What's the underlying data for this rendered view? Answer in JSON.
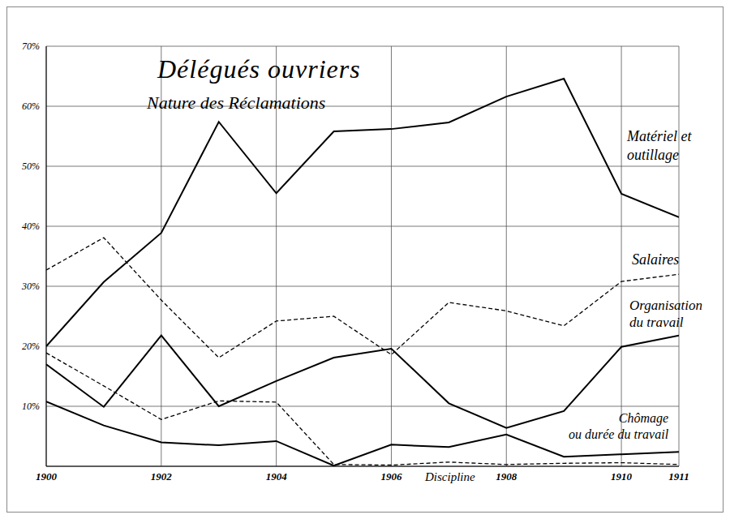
{
  "chart_data": {
    "type": "line",
    "title": "Délégués ouvriers",
    "subtitle": "Nature des Réclamations",
    "x": [
      1900,
      1901,
      1902,
      1903,
      1904,
      1905,
      1906,
      1907,
      1908,
      1909,
      1910,
      1911
    ],
    "xlim": [
      1900,
      1911
    ],
    "xticks": [
      1900,
      1902,
      1904,
      1906,
      1908,
      1910,
      1911
    ],
    "ylim": [
      0,
      70
    ],
    "yticks": [
      {
        "value": 10,
        "label": "10%"
      },
      {
        "value": 20,
        "label": "20%"
      },
      {
        "value": 30,
        "label": "30%"
      },
      {
        "value": 40,
        "label": "40%"
      },
      {
        "value": 50,
        "label": "50%"
      },
      {
        "value": 60,
        "label": "60%"
      },
      {
        "value": 70,
        "label": "70%"
      }
    ],
    "grid": true,
    "series": [
      {
        "name": "Matériel et outillage",
        "color": "#000000",
        "line_style": "solid",
        "values": [
          20,
          30.7,
          38.9,
          57.4,
          45.5,
          55.8,
          56.2,
          57.3,
          61.6,
          64.6,
          45.4,
          41.5
        ]
      },
      {
        "name": "Salaires",
        "color": "#000000",
        "line_style": "dashed",
        "values": [
          32.7,
          38.1,
          27.7,
          18.1,
          24.2,
          25,
          18.6,
          27.3,
          25.9,
          23.4,
          30.8,
          32
        ]
      },
      {
        "name": "Organisation du travail",
        "color": "#000000",
        "line_style": "solid",
        "values": [
          17,
          9.9,
          21.8,
          10,
          14.2,
          18.1,
          19.6,
          10.5,
          6.4,
          9.2,
          19.9,
          21.8
        ]
      },
      {
        "name": "Chômage ou durée du travail",
        "color": "#000000",
        "line_style": "solid",
        "values": [
          10.8,
          6.8,
          4,
          3.5,
          4.2,
          0.1,
          3.6,
          3.2,
          5.3,
          1.6,
          2,
          2.4
        ]
      },
      {
        "name": "Discipline",
        "color": "#000000",
        "line_style": "dashed",
        "values": [
          18.9,
          13.4,
          7.8,
          10.9,
          10.7,
          0.3,
          0.2,
          0.7,
          0.3,
          0.5,
          0.6,
          0.3
        ]
      }
    ]
  }
}
